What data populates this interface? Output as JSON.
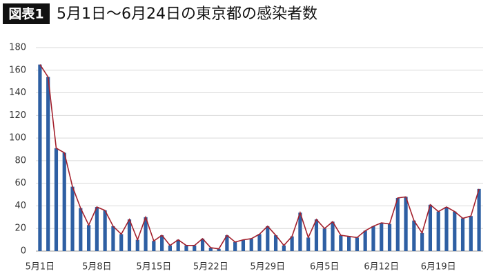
{
  "chart_data": {
    "type": "bar",
    "badge": "図表1",
    "title": "5月1日〜6月24日の東京都の感染者数",
    "categories": [
      "5月1日",
      null,
      null,
      null,
      null,
      null,
      null,
      "5月8日",
      null,
      null,
      null,
      null,
      null,
      null,
      "5月15日",
      null,
      null,
      null,
      null,
      null,
      null,
      "5月22日",
      null,
      null,
      null,
      null,
      null,
      null,
      "5月29日",
      null,
      null,
      null,
      null,
      null,
      null,
      "6月5日",
      null,
      null,
      null,
      null,
      null,
      null,
      "6月12日",
      null,
      null,
      null,
      null,
      null,
      null,
      "6月19日",
      null,
      null,
      null,
      null,
      null
    ],
    "values": [
      165,
      154,
      91,
      87,
      57,
      38,
      23,
      39,
      36,
      22,
      15,
      28,
      10,
      30,
      9,
      14,
      5,
      10,
      5,
      5,
      11,
      3,
      2,
      14,
      8,
      10,
      11,
      15,
      22,
      14,
      5,
      13,
      34,
      12,
      28,
      20,
      26,
      14,
      13,
      12,
      18,
      22,
      25,
      24,
      47,
      48,
      27,
      16,
      41,
      35,
      39,
      35,
      29,
      31,
      55
    ],
    "color": "#2e5fa3",
    "line_color": "#a3202c",
    "ylim": [
      0,
      180
    ],
    "yticks": [
      0,
      20,
      40,
      60,
      80,
      100,
      120,
      140,
      160,
      180
    ],
    "grid": true
  }
}
